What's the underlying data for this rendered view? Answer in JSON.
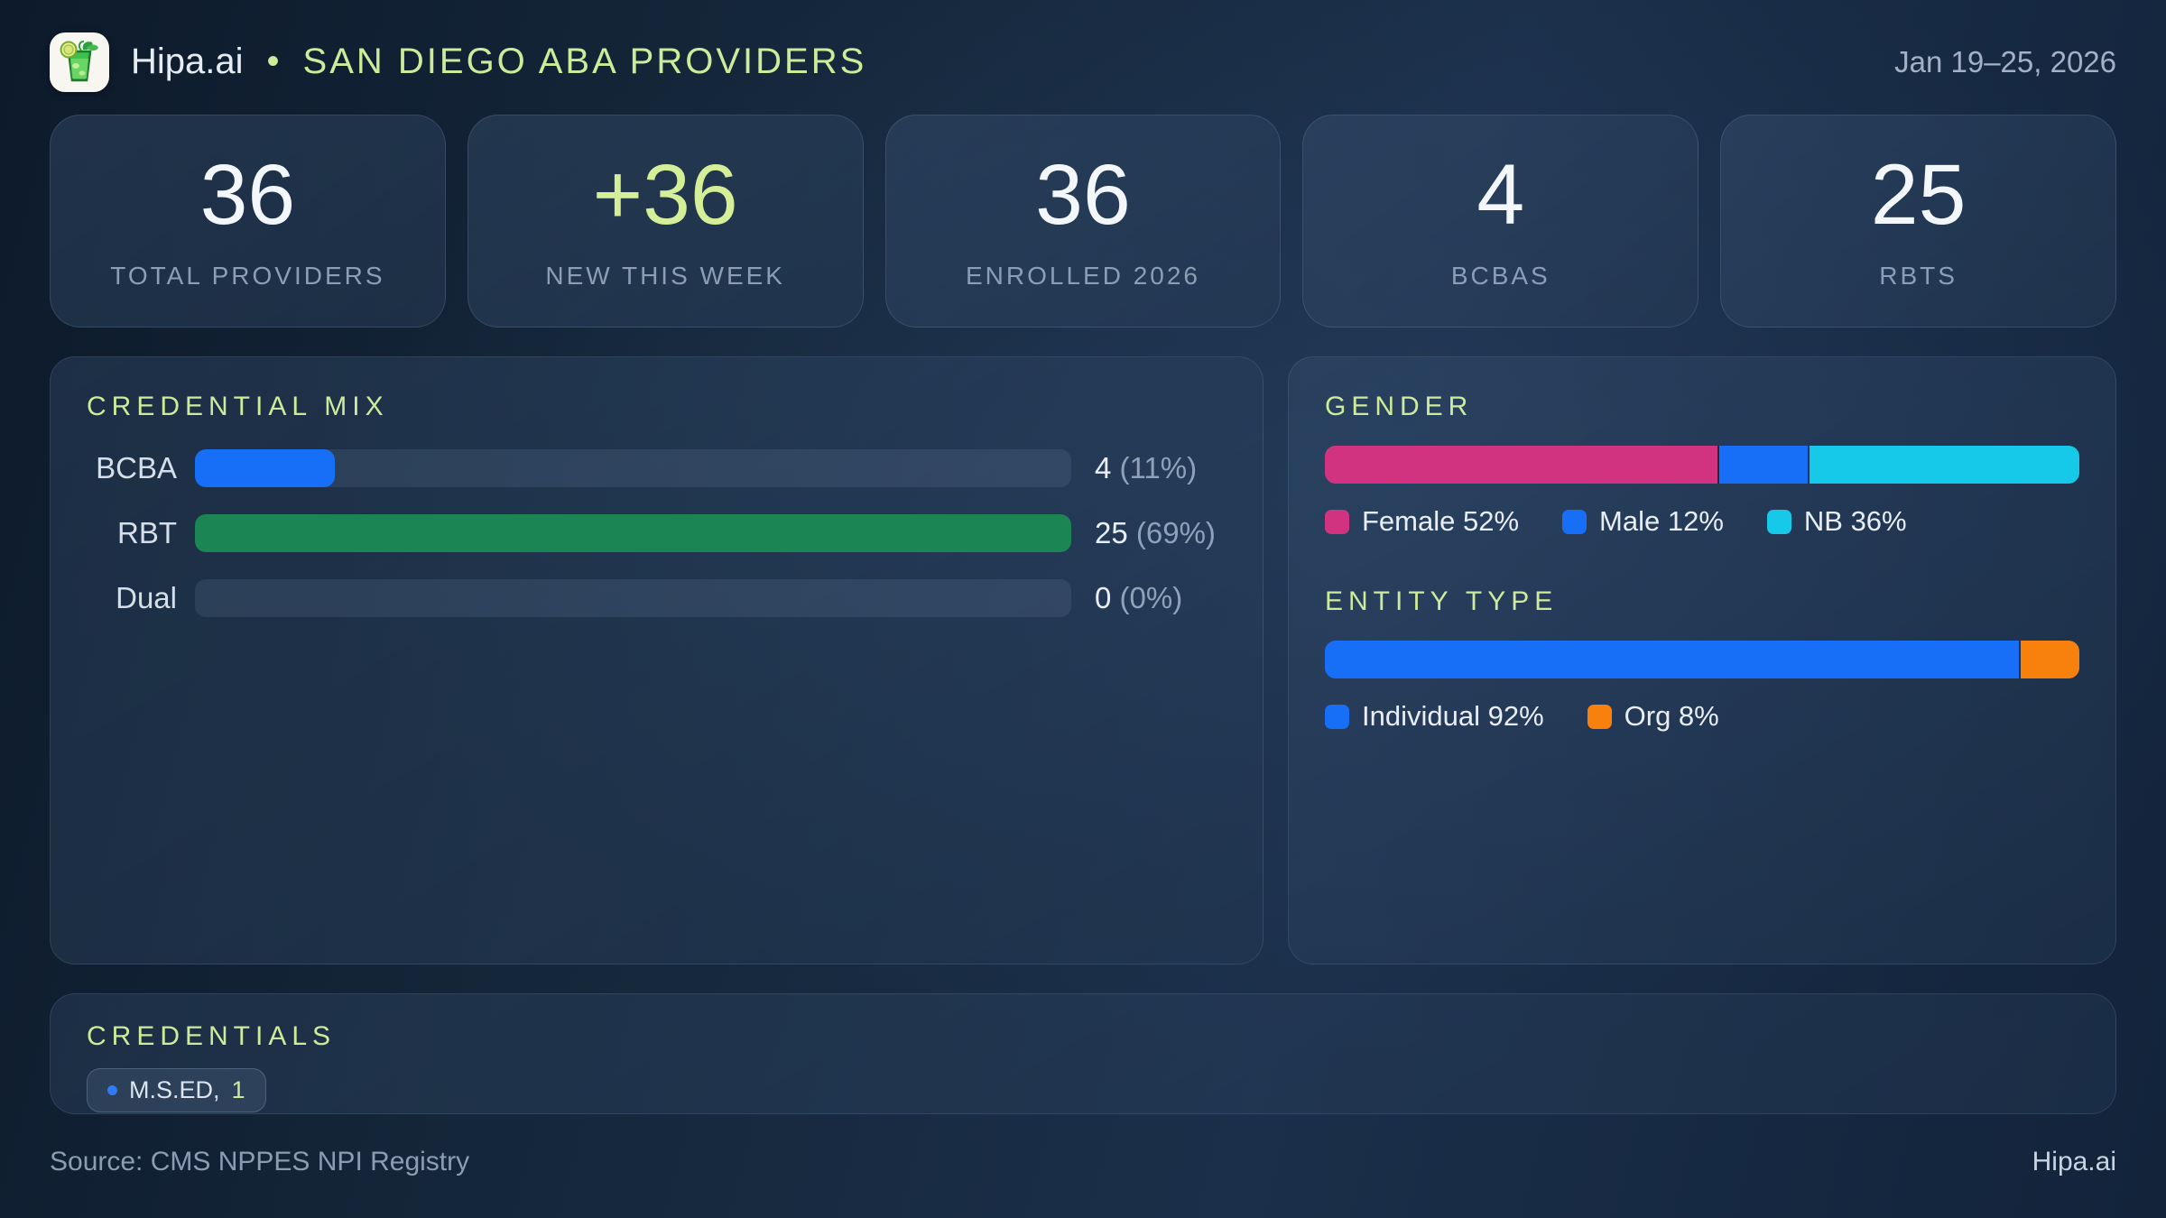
{
  "header": {
    "brand": "Hipa.ai",
    "separator": "•",
    "title": "SAN DIEGO ABA PROVIDERS",
    "date_range": "Jan 19–25, 2026",
    "logo_icon": "mojito-glass-icon"
  },
  "stats": [
    {
      "value": "36",
      "label": "TOTAL PROVIDERS",
      "accent": false
    },
    {
      "value": "+36",
      "label": "NEW THIS WEEK",
      "accent": true
    },
    {
      "value": "36",
      "label": "ENROLLED 2026",
      "accent": false
    },
    {
      "value": "4",
      "label": "BCBAS",
      "accent": false
    },
    {
      "value": "25",
      "label": "RBTS",
      "accent": false
    }
  ],
  "credential_mix": {
    "title": "CREDENTIAL MIX",
    "rows": [
      {
        "label": "BCBA",
        "value": "4",
        "pct": "(11%)",
        "fill_pct": 16,
        "color": "#176ef7"
      },
      {
        "label": "RBT",
        "value": "25",
        "pct": "(69%)",
        "fill_pct": 100,
        "color": "#1b8653"
      },
      {
        "label": "Dual",
        "value": "0",
        "pct": "(0%)",
        "fill_pct": 0,
        "color": "#176ef7"
      }
    ]
  },
  "gender": {
    "title": "GENDER",
    "segments": [
      {
        "label": "Female 52%",
        "pct": 52,
        "color": "#d23380"
      },
      {
        "label": "Male 12%",
        "pct": 12,
        "color": "#176ef7"
      },
      {
        "label": "NB 36%",
        "pct": 36,
        "color": "#16c9e9"
      }
    ]
  },
  "entity_type": {
    "title": "ENTITY TYPE",
    "segments": [
      {
        "label": "Individual 92%",
        "pct": 92,
        "color": "#176ef7"
      },
      {
        "label": "Org 8%",
        "pct": 8,
        "color": "#f8810e"
      }
    ]
  },
  "credentials": {
    "title": "CREDENTIALS",
    "chips": [
      {
        "label": "M.S.ED,",
        "count": "1"
      }
    ]
  },
  "footer": {
    "source": "Source: CMS NPPES NPI Registry",
    "brand": "Hipa.ai"
  },
  "colors": {
    "accent_green": "#cdeb9a",
    "blue": "#176ef7",
    "green": "#1b8653",
    "pink": "#d23380",
    "cyan": "#16c9e9",
    "orange": "#f8810e",
    "background": "#142639",
    "panel": "#22354d"
  },
  "chart_data": [
    {
      "type": "bar",
      "title": "CREDENTIAL MIX",
      "orientation": "horizontal",
      "categories": [
        "BCBA",
        "RBT",
        "Dual"
      ],
      "values": [
        4,
        25,
        0
      ],
      "percent_labels": [
        "11%",
        "69%",
        "0%"
      ],
      "xlim": [
        0,
        25
      ],
      "grid": false
    },
    {
      "type": "bar",
      "title": "GENDER",
      "stacked": true,
      "categories": [
        "Female",
        "Male",
        "NB"
      ],
      "values": [
        52,
        12,
        36
      ],
      "unit": "%",
      "legend_position": "bottom"
    },
    {
      "type": "bar",
      "title": "ENTITY TYPE",
      "stacked": true,
      "categories": [
        "Individual",
        "Org"
      ],
      "values": [
        92,
        8
      ],
      "unit": "%",
      "legend_position": "bottom"
    }
  ]
}
